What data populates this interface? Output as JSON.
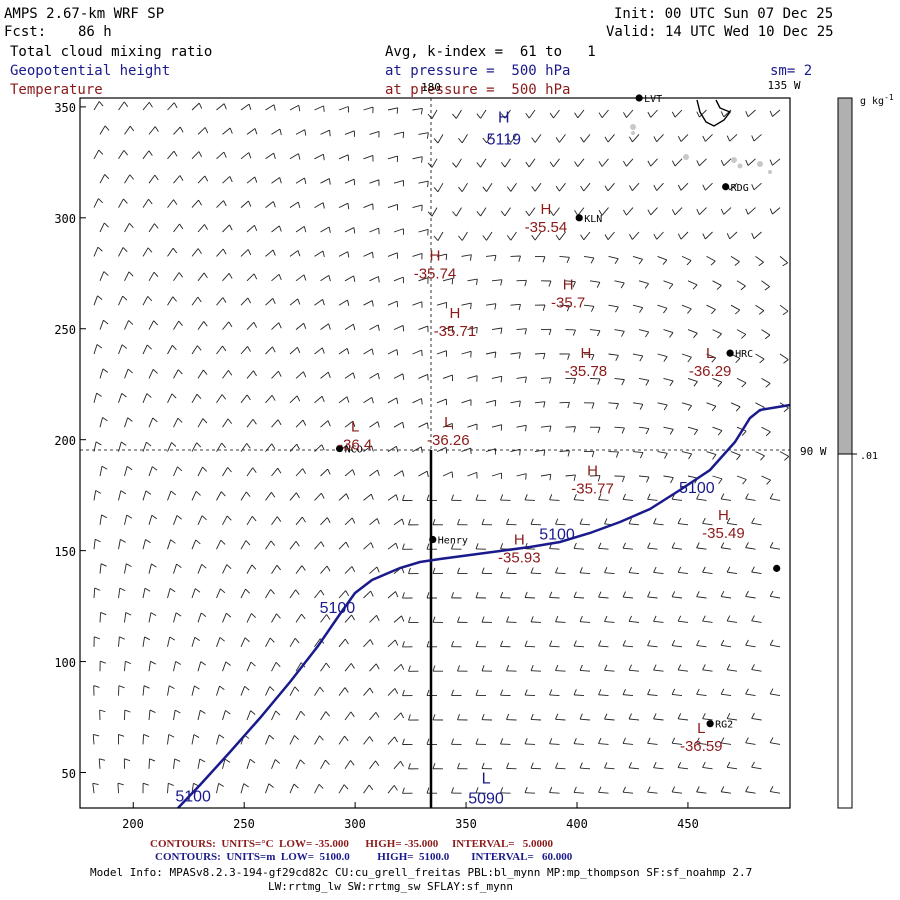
{
  "header": {
    "model": "AMPS 2.67-km WRF SP",
    "fcst_label": "Fcst:",
    "fcst_value": "86 h",
    "init": "Init: 00 UTC Sun 07 Dec 25",
    "valid": "Valid: 14 UTC Wed 10 Dec 25",
    "field1": "Total cloud mixing ratio",
    "field1_info": "Avg, k-index =  61 to   1",
    "field2": "Geopotential height",
    "field2_info": "at pressure =  500 hPa",
    "field2_extra": "sm= 2",
    "field3": "Temperature",
    "field3_info": "at pressure =  500 hPa"
  },
  "colors": {
    "height": "#1a1a8c",
    "temperature": "#8b1a1a",
    "colorbar_fill": "#b0b0b0",
    "stations": "#000000"
  },
  "axes": {
    "x_ticks": [
      "200",
      "250",
      "300",
      "350",
      "400",
      "450"
    ],
    "y_ticks": [
      "350",
      "300",
      "250",
      "200",
      "150",
      "100",
      "50"
    ],
    "lon_top_180": "180",
    "lon_top_135": "135 W",
    "lon_right_90": "90 W"
  },
  "colorbar": {
    "unit": "g kg-1",
    "unit_sup": "-1",
    "unit_base": "g kg",
    "label": ".01"
  },
  "stations": [
    {
      "name": "LVT",
      "x": 428,
      "y": 354
    },
    {
      "name": "RDG",
      "x": 467,
      "y": 314
    },
    {
      "name": "KLN",
      "x": 401,
      "y": 300
    },
    {
      "name": "HRC",
      "x": 469,
      "y": 239
    },
    {
      "name": "NCO",
      "x": 293,
      "y": 196
    },
    {
      "name": "Henry",
      "x": 335,
      "y": 155
    },
    {
      "name": "RG2",
      "x": 460,
      "y": 72
    },
    {
      "name": "",
      "x": 490,
      "y": 142
    }
  ],
  "height_labels": [
    {
      "text": "H",
      "x": 367,
      "y": 343
    },
    {
      "text": "5119",
      "x": 367,
      "y": 333
    },
    {
      "text": "5100",
      "x": 391,
      "y": 155
    },
    {
      "text": "5100",
      "x": 454,
      "y": 176
    },
    {
      "text": "5100",
      "x": 292,
      "y": 122
    },
    {
      "text": "5100",
      "x": 227,
      "y": 37
    },
    {
      "text": "L",
      "x": 359,
      "y": 45
    },
    {
      "text": "5090",
      "x": 359,
      "y": 36
    }
  ],
  "temp_labels": [
    {
      "kind": "H",
      "value": "-35.54",
      "x": 386,
      "y": 300
    },
    {
      "kind": "H",
      "value": "-35.74",
      "x": 336,
      "y": 279
    },
    {
      "kind": "H",
      "value": "-35.7",
      "x": 396,
      "y": 266
    },
    {
      "kind": "H",
      "value": "-35.71",
      "x": 345,
      "y": 253
    },
    {
      "kind": "H",
      "value": "-35.78",
      "x": 404,
      "y": 235
    },
    {
      "kind": "L",
      "value": "-36.29",
      "x": 460,
      "y": 235
    },
    {
      "kind": "L",
      "value": "-36.4",
      "x": 300,
      "y": 202
    },
    {
      "kind": "L",
      "value": "-36.26",
      "x": 342,
      "y": 204
    },
    {
      "kind": "H",
      "value": "-35.77",
      "x": 407,
      "y": 182
    },
    {
      "kind": "H",
      "value": "-35.49",
      "x": 466,
      "y": 162
    },
    {
      "kind": "H",
      "value": "-35.93",
      "x": 374,
      "y": 151
    },
    {
      "kind": "L",
      "value": "-36.59",
      "x": 456,
      "y": 66
    }
  ],
  "footer": {
    "row1_label": "CONTOURS:",
    "row1_units": "UNITS=°C",
    "row1_low": "LOW= -35.000",
    "row1_high": "HIGH= -35.000",
    "row1_interval": "INTERVAL=   5.0000",
    "row2_label": "CONTOURS:",
    "row2_units": "UNITS=m",
    "row2_low": "LOW=  5100.0",
    "row2_high": "HIGH=  5100.0",
    "row2_interval": "INTERVAL=   60.000",
    "model_info": "Model Info: MPASv8.2.3-194-gf29cd82c CU:cu_grell_freitas PBL:bl_mynn MP:mp_thompson SF:sf_noahmp 2.7",
    "model_info2": "LW:rrtmg_lw SW:rrtmg_sw SFLAY:sf_mynn"
  }
}
